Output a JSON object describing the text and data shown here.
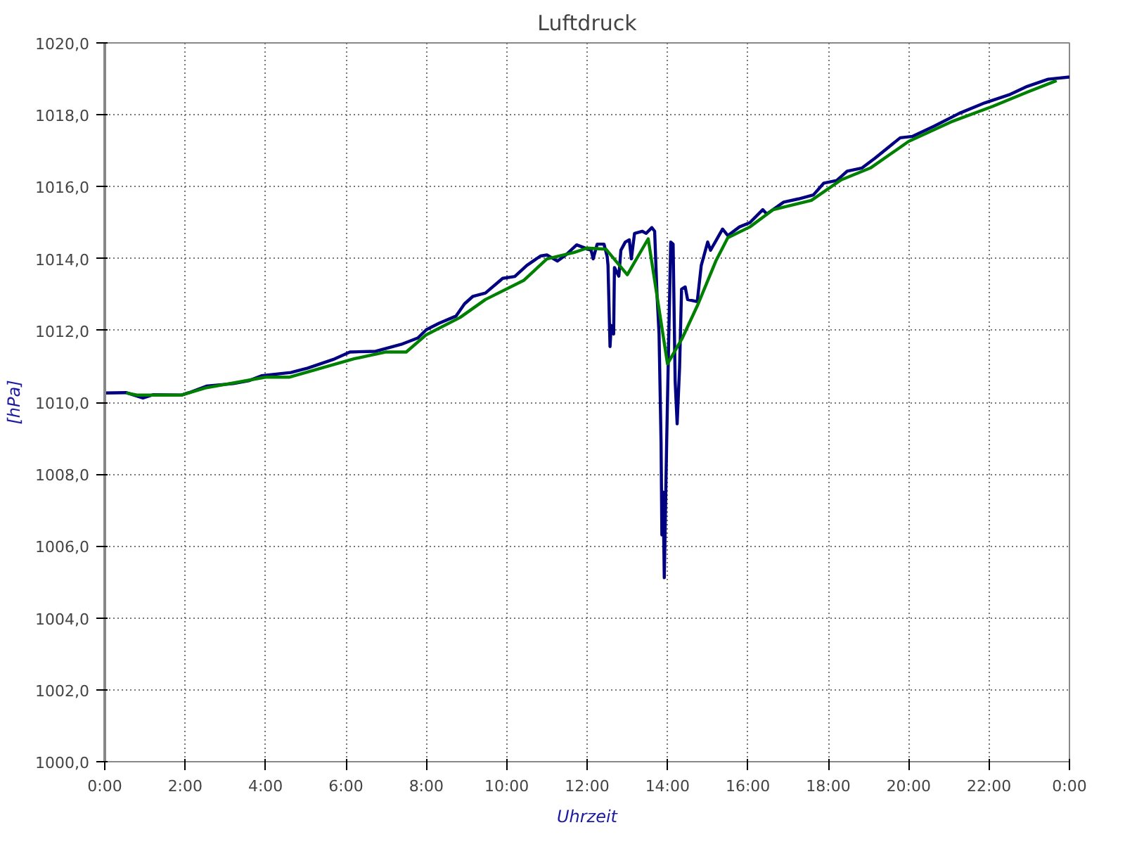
{
  "chart_data": {
    "type": "line",
    "title": "Luftdruck",
    "xlabel": "Uhrzeit",
    "ylabel": "[hPa]",
    "xlim": [
      0,
      24
    ],
    "ylim": [
      1000,
      1020
    ],
    "xticks": [
      {
        "value": 0,
        "label": "0:00"
      },
      {
        "value": 2,
        "label": "2:00"
      },
      {
        "value": 4,
        "label": "4:00"
      },
      {
        "value": 6,
        "label": "6:00"
      },
      {
        "value": 8,
        "label": "8:00"
      },
      {
        "value": 10,
        "label": "10:00"
      },
      {
        "value": 12,
        "label": "12:00"
      },
      {
        "value": 14,
        "label": "14:00"
      },
      {
        "value": 16,
        "label": "16:00"
      },
      {
        "value": 18,
        "label": "18:00"
      },
      {
        "value": 20,
        "label": "20:00"
      },
      {
        "value": 22,
        "label": "22:00"
      },
      {
        "value": 24,
        "label": "0:00"
      }
    ],
    "yticks": [
      {
        "value": 1000,
        "label": "1000,0"
      },
      {
        "value": 1002,
        "label": "1002,0"
      },
      {
        "value": 1004,
        "label": "1004,0"
      },
      {
        "value": 1006,
        "label": "1006,0"
      },
      {
        "value": 1008,
        "label": "1008,0"
      },
      {
        "value": 1010,
        "label": "1010,0"
      },
      {
        "value": 1012,
        "label": "1012,0"
      },
      {
        "value": 1014,
        "label": "1014,0"
      },
      {
        "value": 1016,
        "label": "1016,0"
      },
      {
        "value": 1018,
        "label": "1018,0"
      },
      {
        "value": 1020,
        "label": "1020,0"
      }
    ],
    "grid": true,
    "marker": "none",
    "line_style": "solid",
    "series": [
      {
        "color": "#000080",
        "x": [
          0,
          0.53,
          0.95,
          1.2,
          1.9,
          2.1,
          2.53,
          3.2,
          3.58,
          3.9,
          4.63,
          5.05,
          5.68,
          6.1,
          6.74,
          7.37,
          7.79,
          8.0,
          8.32,
          8.74,
          8.95,
          9.16,
          9.47,
          9.9,
          10.2,
          10.5,
          10.84,
          11.0,
          11.26,
          11.47,
          11.74,
          12.1,
          12.15,
          12.25,
          12.42,
          12.5,
          12.52,
          12.57,
          12.6,
          12.66,
          12.68,
          12.79,
          12.84,
          12.95,
          13.05,
          13.1,
          13.18,
          13.37,
          13.47,
          13.61,
          13.68,
          13.74,
          13.79,
          13.84,
          13.86,
          13.89,
          13.92,
          13.98,
          14.02,
          14.08,
          14.14,
          14.19,
          14.24,
          14.3,
          14.35,
          14.44,
          14.5,
          14.74,
          14.84,
          15.0,
          15.07,
          15.37,
          15.5,
          15.79,
          16.05,
          16.37,
          16.47,
          16.89,
          17.26,
          17.63,
          17.89,
          18.21,
          18.47,
          18.84,
          19.16,
          19.79,
          20.1,
          20.63,
          21.26,
          21.89,
          22.53,
          22.95,
          23.47,
          24
        ],
        "values": [
          1010.26,
          1010.27,
          1010.12,
          1010.21,
          1010.2,
          1010.27,
          1010.45,
          1010.52,
          1010.6,
          1010.74,
          1010.83,
          1010.95,
          1011.19,
          1011.4,
          1011.42,
          1011.61,
          1011.79,
          1012.02,
          1012.2,
          1012.4,
          1012.74,
          1012.95,
          1013.04,
          1013.45,
          1013.5,
          1013.81,
          1014.07,
          1014.1,
          1013.93,
          1014.1,
          1014.38,
          1014.23,
          1013.99,
          1014.4,
          1014.4,
          1014.05,
          1013.81,
          1011.55,
          1012.14,
          1011.9,
          1013.75,
          1013.51,
          1014.23,
          1014.46,
          1014.52,
          1013.99,
          1014.7,
          1014.76,
          1014.7,
          1014.86,
          1014.76,
          1012.98,
          1011.9,
          1008.87,
          1006.31,
          1007.5,
          1005.12,
          1008.93,
          1011.19,
          1014.46,
          1014.4,
          1010.6,
          1009.4,
          1010.95,
          1013.15,
          1013.21,
          1012.86,
          1012.8,
          1013.81,
          1014.46,
          1014.23,
          1014.82,
          1014.64,
          1014.88,
          1015.0,
          1015.36,
          1015.24,
          1015.57,
          1015.66,
          1015.77,
          1016.1,
          1016.17,
          1016.43,
          1016.52,
          1016.79,
          1017.36,
          1017.4,
          1017.68,
          1018.04,
          1018.33,
          1018.57,
          1018.79,
          1018.99,
          1019.05
        ]
      },
      {
        "color": "#008000",
        "x": [
          0.53,
          0.8,
          1.9,
          2.5,
          4.0,
          4.6,
          6.2,
          7.0,
          7.5,
          8.0,
          8.84,
          9.47,
          10.42,
          11.0,
          11.68,
          12.0,
          12.47,
          13.0,
          13.52,
          14.0,
          14.37,
          14.74,
          15.21,
          15.5,
          16.05,
          16.63,
          17.58,
          18.32,
          19.05,
          20.0,
          21.05,
          22.1,
          22.95,
          23.68
        ],
        "values": [
          1010.26,
          1010.2,
          1010.2,
          1010.4,
          1010.7,
          1010.7,
          1011.21,
          1011.4,
          1011.4,
          1011.88,
          1012.36,
          1012.86,
          1013.39,
          1013.99,
          1014.17,
          1014.29,
          1014.26,
          1013.55,
          1014.55,
          1011.07,
          1011.79,
          1012.68,
          1013.95,
          1014.58,
          1014.88,
          1015.36,
          1015.62,
          1016.19,
          1016.52,
          1017.26,
          1017.8,
          1018.24,
          1018.63,
          1018.95
        ]
      }
    ]
  }
}
